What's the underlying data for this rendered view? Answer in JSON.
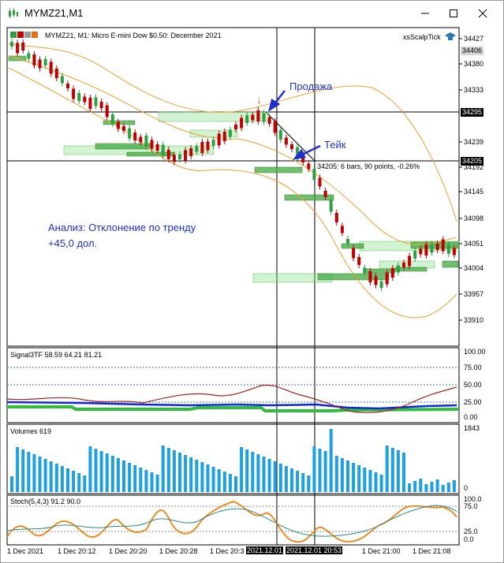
{
  "window": {
    "title": "MYMZ21,M1"
  },
  "chart": {
    "symbol_header": "MYMZ21, M1:  Micro E-mini Dow $0.50: December 2021",
    "indicator_name": "xsScalpTick",
    "annotation_sell": "Продажа",
    "annotation_take": "Тейк",
    "analysis_line1": "Анализ: Отклонение по тренду",
    "analysis_line2": "+45,0 дол.",
    "measure_label": "34205: 6 bars, 90 points, -0.26%",
    "price_ticks": [
      "34427",
      "34380",
      "34333",
      "34239",
      "34192",
      "34145",
      "34098",
      "34051",
      "34004",
      "33957",
      "33910"
    ],
    "price_tag_current": "34406",
    "price_tag_line1": "34295",
    "price_tag_line2": "34205"
  },
  "signal_panel": {
    "label": "Signal3TF 58.59 64.21 81.21",
    "ticks": [
      "100.00",
      "75.00",
      "50.00",
      "25.00",
      "0.00"
    ]
  },
  "volume_panel": {
    "label": "Volumes 619",
    "ticks": [
      "1843",
      "0"
    ]
  },
  "stoch_panel": {
    "label": "Stoch(5,4,3) 91.2 90.0",
    "ticks": [
      "100.0",
      "75.0",
      "25.0",
      "0.0"
    ]
  },
  "time_axis": {
    "labels": [
      "1 Dec 2021",
      "1 Dec 20:12",
      "1 Dec 20:20",
      "1 Dec 20:28",
      "1 Dec 20:3",
      "1 Dec 21:00",
      "1 Dec 21:08"
    ],
    "crosshair_1": "2021.12.01",
    "crosshair_2": "2021.12.01 20:53"
  },
  "colors": {
    "bull": "#2ea043",
    "bear": "#c00000",
    "band": "#f0a030",
    "zone": "#7ddc7d",
    "annotation": "#1f2fd0"
  }
}
